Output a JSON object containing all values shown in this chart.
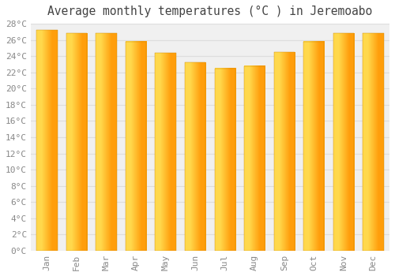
{
  "title": "Average monthly temperatures (°C ) in Jeremoabo",
  "months": [
    "Jan",
    "Feb",
    "Mar",
    "Apr",
    "May",
    "Jun",
    "Jul",
    "Aug",
    "Sep",
    "Oct",
    "Nov",
    "Dec"
  ],
  "values": [
    27.2,
    26.8,
    26.8,
    25.8,
    24.4,
    23.2,
    22.5,
    22.8,
    24.5,
    25.8,
    26.8,
    26.8
  ],
  "bar_color_left": "#FFD966",
  "bar_color_right": "#FFA500",
  "ylim": [
    0,
    28
  ],
  "ytick_step": 2,
  "background_color": "#FFFFFF",
  "plot_bg_color": "#F0F0F0",
  "grid_color": "#DDDDDD",
  "tick_label_color": "#888888",
  "title_color": "#444444",
  "title_fontsize": 10.5,
  "tick_fontsize": 8,
  "bar_width": 0.7
}
